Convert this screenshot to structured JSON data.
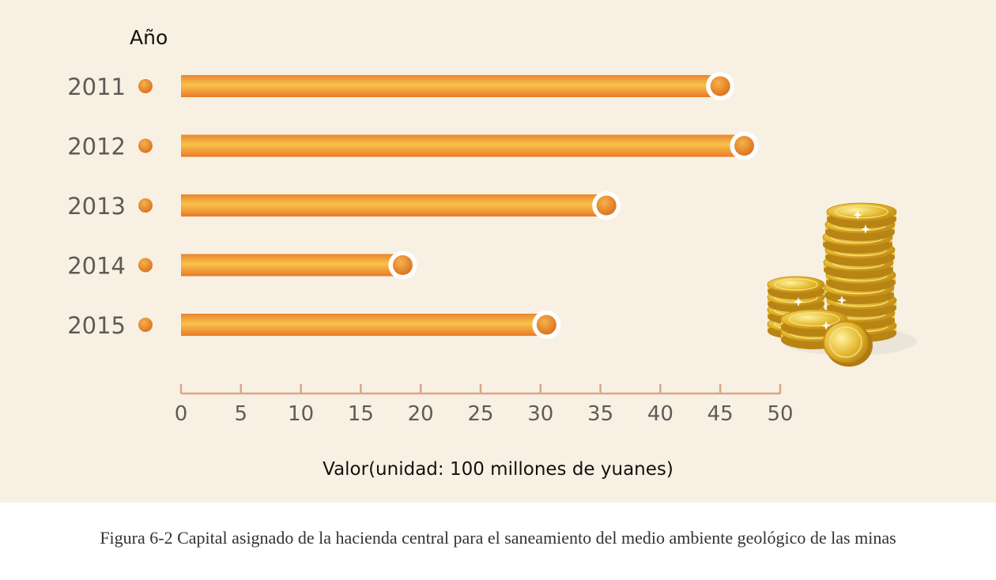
{
  "chart_data": {
    "type": "bar",
    "orientation": "horizontal",
    "categories": [
      "2011",
      "2012",
      "2013",
      "2014",
      "2015"
    ],
    "values": [
      45,
      47,
      35.5,
      18.5,
      30.5
    ],
    "ylabel": "Año",
    "xlabel": "Valor(unidad: 100 millones de yuanes)",
    "xlim": [
      0,
      50
    ],
    "xticks": [
      "0",
      "5",
      "10",
      "15",
      "20",
      "25",
      "30",
      "35",
      "40",
      "45",
      "50"
    ],
    "grid": false,
    "legend": "none",
    "colors": {
      "bar": "#f0a43a",
      "marker": "#e88a2a",
      "axis": "#dba48a",
      "background": "#f8f1e3"
    }
  },
  "caption": "Figura 6-2 Capital asignado de la hacienda central para el saneamiento del medio ambiente geológico de las minas",
  "illustration": "coin-stack-icon"
}
